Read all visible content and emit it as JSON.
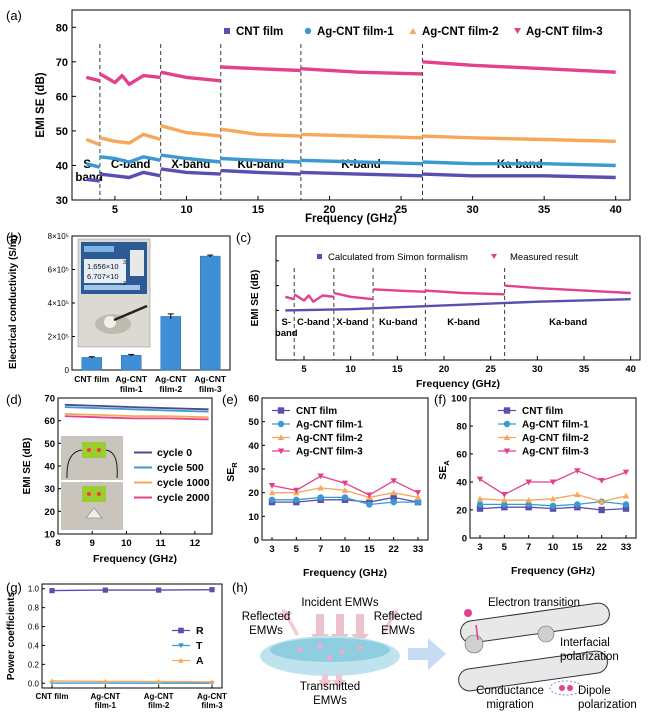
{
  "panel_labels": {
    "a": "(a)",
    "b": "(b)",
    "c": "(c)",
    "d": "(d)",
    "e": "(e)",
    "f": "(f)",
    "g": "(g)",
    "h": "(h)"
  },
  "colors": {
    "cnt": "#5a4fb0",
    "ag1": "#3a9ad0",
    "ag2": "#f5a85a",
    "ag3": "#e2418c",
    "bar": "#3f8fd6",
    "R": "#5a4fb0",
    "T": "#3a9ad0",
    "A": "#f5a85a"
  },
  "chart_data": [
    {
      "id": "a",
      "type": "line",
      "xlabel": "Frequency (GHz)",
      "ylabel": "EMI SE (dB)",
      "xlim": [
        2,
        41
      ],
      "ylim": [
        30,
        85
      ],
      "xticks": [
        5,
        10,
        15,
        20,
        25,
        30,
        35,
        40
      ],
      "yticks": [
        30,
        40,
        50,
        60,
        70,
        80
      ],
      "band_edges": [
        3.95,
        8.2,
        12.4,
        18,
        26.5
      ],
      "bands": [
        {
          "label": "S-\nband",
          "x": 3.2
        },
        {
          "label": "C-band",
          "x": 6.1
        },
        {
          "label": "X-band",
          "x": 10.3
        },
        {
          "label": "Ku-band",
          "x": 15.2
        },
        {
          "label": "K-band",
          "x": 22.2
        },
        {
          "label": "Ka-band",
          "x": 33.3
        }
      ],
      "legend": [
        "CNT film",
        "Ag-CNT film-1",
        "Ag-CNT film-2",
        "Ag-CNT film-3"
      ],
      "series": [
        {
          "name": "CNT film",
          "segments": [
            [
              [
                3,
                36
              ],
              [
                3.95,
                35.5
              ]
            ],
            [
              [
                3.95,
                37.5
              ],
              [
                5,
                37
              ],
              [
                6,
                36.5
              ],
              [
                7,
                38
              ],
              [
                8.2,
                37
              ]
            ],
            [
              [
                8.2,
                39
              ],
              [
                10,
                38
              ],
              [
                12.4,
                37.5
              ]
            ],
            [
              [
                12.4,
                38.5
              ],
              [
                15,
                38
              ],
              [
                18,
                37.5
              ]
            ],
            [
              [
                18,
                38
              ],
              [
                22,
                37.5
              ],
              [
                26.5,
                37
              ]
            ],
            [
              [
                26.5,
                37.5
              ],
              [
                30,
                37
              ],
              [
                35,
                37
              ],
              [
                40,
                36.5
              ]
            ]
          ]
        },
        {
          "name": "Ag-CNT film-1",
          "segments": [
            [
              [
                3,
                40.5
              ],
              [
                3.95,
                39.5
              ]
            ],
            [
              [
                3.95,
                42.5
              ],
              [
                5,
                42
              ],
              [
                6,
                41
              ],
              [
                7,
                42.5
              ],
              [
                8.2,
                41.5
              ]
            ],
            [
              [
                8.2,
                43
              ],
              [
                10,
                42
              ],
              [
                12.4,
                41
              ]
            ],
            [
              [
                12.4,
                42
              ],
              [
                15,
                41.5
              ],
              [
                18,
                41
              ]
            ],
            [
              [
                18,
                41.5
              ],
              [
                22,
                41
              ],
              [
                26.5,
                40.5
              ]
            ],
            [
              [
                26.5,
                41
              ],
              [
                30,
                40.5
              ],
              [
                35,
                40.5
              ],
              [
                40,
                40
              ]
            ]
          ]
        },
        {
          "name": "Ag-CNT film-2",
          "segments": [
            [
              [
                3,
                47.5
              ],
              [
                3.95,
                46
              ]
            ],
            [
              [
                3.95,
                48
              ],
              [
                5,
                47
              ],
              [
                6,
                46.5
              ],
              [
                7,
                49
              ],
              [
                8.2,
                47.5
              ]
            ],
            [
              [
                8.2,
                51.5
              ],
              [
                10,
                49.5
              ],
              [
                12.4,
                48.5
              ]
            ],
            [
              [
                12.4,
                50.5
              ],
              [
                15,
                49
              ],
              [
                18,
                48.5
              ]
            ],
            [
              [
                18,
                49
              ],
              [
                22,
                48.5
              ],
              [
                26.5,
                48
              ]
            ],
            [
              [
                26.5,
                48.5
              ],
              [
                30,
                48
              ],
              [
                35,
                47.5
              ],
              [
                40,
                47
              ]
            ]
          ]
        },
        {
          "name": "Ag-CNT film-3",
          "segments": [
            [
              [
                3,
                65.5
              ],
              [
                3.95,
                64.5
              ]
            ],
            [
              [
                3.95,
                66.5
              ],
              [
                5,
                64
              ],
              [
                5.5,
                66
              ],
              [
                6,
                63.5
              ],
              [
                7,
                66
              ],
              [
                8.2,
                65.5
              ]
            ],
            [
              [
                8.2,
                67
              ],
              [
                10,
                65.5
              ],
              [
                12.4,
                64.5
              ]
            ],
            [
              [
                12.4,
                68.5
              ],
              [
                15,
                68
              ],
              [
                18,
                67.5
              ]
            ],
            [
              [
                18,
                68
              ],
              [
                22,
                67
              ],
              [
                26.5,
                66.5
              ]
            ],
            [
              [
                26.5,
                70
              ],
              [
                30,
                69
              ],
              [
                35,
                68
              ],
              [
                40,
                67
              ]
            ]
          ]
        }
      ]
    },
    {
      "id": "b",
      "type": "bar",
      "ylabel": "Electrical conductivity (S/m)",
      "ylim": [
        0,
        800000
      ],
      "ytick_labels": [
        "0",
        "2×10⁵",
        "4×10⁵",
        "6×10⁵",
        "8×10⁵"
      ],
      "categories": [
        "CNT film",
        "Ag-CNT\nfilm-1",
        "Ag-CNT\nfilm-2",
        "Ag-CNT\nfilm-3"
      ],
      "values": [
        75000,
        88000,
        320000,
        680000
      ],
      "errors": [
        4000,
        5000,
        15000,
        6000
      ],
      "inset_text": [
        "1.656×10",
        "6.707×10",
        "3",
        "3"
      ]
    },
    {
      "id": "c",
      "type": "line",
      "xlabel": "Frequency (GHz)",
      "ylabel": "EMI SE (dB)",
      "xlim": [
        2,
        41
      ],
      "ylim": [
        40,
        90
      ],
      "xticks": [
        5,
        10,
        15,
        20,
        25,
        30,
        35,
        40
      ],
      "band_edges": [
        3.95,
        8.2,
        12.4,
        18,
        26.5
      ],
      "bands": [
        {
          "label": "S-\nband",
          "x": 3.1
        },
        {
          "label": "C-band",
          "x": 6
        },
        {
          "label": "X-band",
          "x": 10.2
        },
        {
          "label": "Ku-band",
          "x": 15.1
        },
        {
          "label": "K-band",
          "x": 22.1
        },
        {
          "label": "Ka-band",
          "x": 33.3
        }
      ],
      "legend": [
        "Calculated from Simon formalism",
        "Measured result"
      ],
      "series": [
        {
          "name": "Calculated from Simon formalism",
          "segments": [
            [
              [
                3,
                60
              ],
              [
                10,
                60.5
              ],
              [
                20,
                62
              ],
              [
                30,
                63.5
              ],
              [
                40,
                64.5
              ]
            ]
          ]
        },
        {
          "name": "Measured result",
          "segments": [
            [
              [
                3,
                65.5
              ],
              [
                3.95,
                64.5
              ]
            ],
            [
              [
                3.95,
                66.5
              ],
              [
                5,
                64
              ],
              [
                5.5,
                66
              ],
              [
                6,
                63.5
              ],
              [
                7,
                66
              ],
              [
                8.2,
                65.5
              ]
            ],
            [
              [
                8.2,
                67
              ],
              [
                10,
                65.5
              ],
              [
                12.4,
                64.5
              ]
            ],
            [
              [
                12.4,
                68.5
              ],
              [
                15,
                68
              ],
              [
                18,
                67.5
              ]
            ],
            [
              [
                18,
                68
              ],
              [
                22,
                67
              ],
              [
                26.5,
                66.5
              ]
            ],
            [
              [
                26.5,
                70
              ],
              [
                30,
                69
              ],
              [
                35,
                68
              ],
              [
                40,
                67
              ]
            ]
          ]
        }
      ]
    },
    {
      "id": "d",
      "type": "line",
      "xlabel": "Frequency (GHz)",
      "ylabel": "EMI SE (dB)",
      "xlim": [
        8,
        12.5
      ],
      "ylim": [
        10,
        70
      ],
      "xticks": [
        8,
        9,
        10,
        11,
        12
      ],
      "yticks": [
        10,
        20,
        30,
        40,
        50,
        60,
        70
      ],
      "legend": [
        "cycle 0",
        "cycle 500",
        "cycle 1000",
        "cycle 2000"
      ],
      "series": [
        {
          "name": "cycle 0",
          "values": [
            67,
            66.5,
            66,
            65.5,
            65
          ]
        },
        {
          "name": "cycle 500",
          "values": [
            66,
            65.5,
            65,
            64.5,
            64
          ]
        },
        {
          "name": "cycle 1000",
          "values": [
            63,
            62.5,
            62,
            62,
            61.5
          ]
        },
        {
          "name": "cycle 2000",
          "values": [
            62,
            61.5,
            61,
            61,
            60.5
          ]
        }
      ],
      "x": [
        8.2,
        9.2,
        10.2,
        11.2,
        12.4
      ]
    },
    {
      "id": "e",
      "type": "line",
      "xlabel": "Frequency (GHz)",
      "ylabel": "SE",
      "ylabel_sub": "R",
      "ylim": [
        0,
        60
      ],
      "yticks": [
        0,
        10,
        20,
        30,
        40,
        50,
        60
      ],
      "categories": [
        "3",
        "5",
        "7",
        "10",
        "15",
        "22",
        "33"
      ],
      "series": [
        {
          "name": "CNT film",
          "values": [
            16,
            16,
            17,
            17,
            16,
            18,
            16
          ]
        },
        {
          "name": "Ag-CNT film-1",
          "values": [
            17,
            17,
            18,
            18,
            15,
            16,
            16
          ]
        },
        {
          "name": "Ag-CNT film-2",
          "values": [
            20,
            20,
            22,
            21,
            18,
            20,
            18
          ]
        },
        {
          "name": "Ag-CNT film-3",
          "values": [
            23,
            21,
            27,
            24,
            19,
            25,
            20
          ]
        }
      ]
    },
    {
      "id": "f",
      "type": "line",
      "xlabel": "Frequency (GHz)",
      "ylabel": "SE",
      "ylabel_sub": "A",
      "ylim": [
        0,
        100
      ],
      "yticks": [
        0,
        20,
        40,
        60,
        80,
        100
      ],
      "categories": [
        "3",
        "5",
        "7",
        "10",
        "15",
        "22",
        "33"
      ],
      "series": [
        {
          "name": "CNT film",
          "values": [
            21,
            22,
            22,
            21,
            22,
            20,
            21
          ]
        },
        {
          "name": "Ag-CNT film-1",
          "values": [
            24,
            24,
            24,
            23,
            24,
            26,
            24
          ]
        },
        {
          "name": "Ag-CNT film-2",
          "values": [
            28,
            27,
            27,
            28,
            31,
            26,
            30
          ]
        },
        {
          "name": "Ag-CNT film-3",
          "values": [
            42,
            31,
            40,
            40,
            48,
            41,
            47
          ]
        }
      ]
    },
    {
      "id": "g",
      "type": "line",
      "ylabel": "Power coefficients",
      "ylim": [
        -0.05,
        1.05
      ],
      "yticks": [
        0.0,
        0.2,
        0.4,
        0.6,
        0.8,
        1.0
      ],
      "ytick_labels": [
        "0.0",
        "0.2",
        "0.4",
        "0.6",
        "0.8",
        "1.0"
      ],
      "categories": [
        "CNT film",
        "Ag-CNT\nfilm-1",
        "Ag-CNT\nfilm-2",
        "Ag-CNT\nfilm-3"
      ],
      "series": [
        {
          "name": "R",
          "values": [
            0.98,
            0.985,
            0.985,
            0.99
          ]
        },
        {
          "name": "T",
          "values": [
            0.002,
            0.002,
            0.001,
            0.001
          ]
        },
        {
          "name": "A",
          "values": [
            0.025,
            0.02,
            0.018,
            0.015
          ]
        }
      ]
    }
  ],
  "schematic": {
    "incident": "Incident EMWs",
    "reflected_left": "Reflected\nEMWs",
    "reflected_right": "Reflected\nEMWs",
    "transmitted": "Transmitted\nEMWs",
    "electron_transition": "Electron transition",
    "interfacial": "Interfacial\npolarization",
    "conductance": "Conductance\nmigration",
    "dipole": "Dipole\npolarization"
  }
}
